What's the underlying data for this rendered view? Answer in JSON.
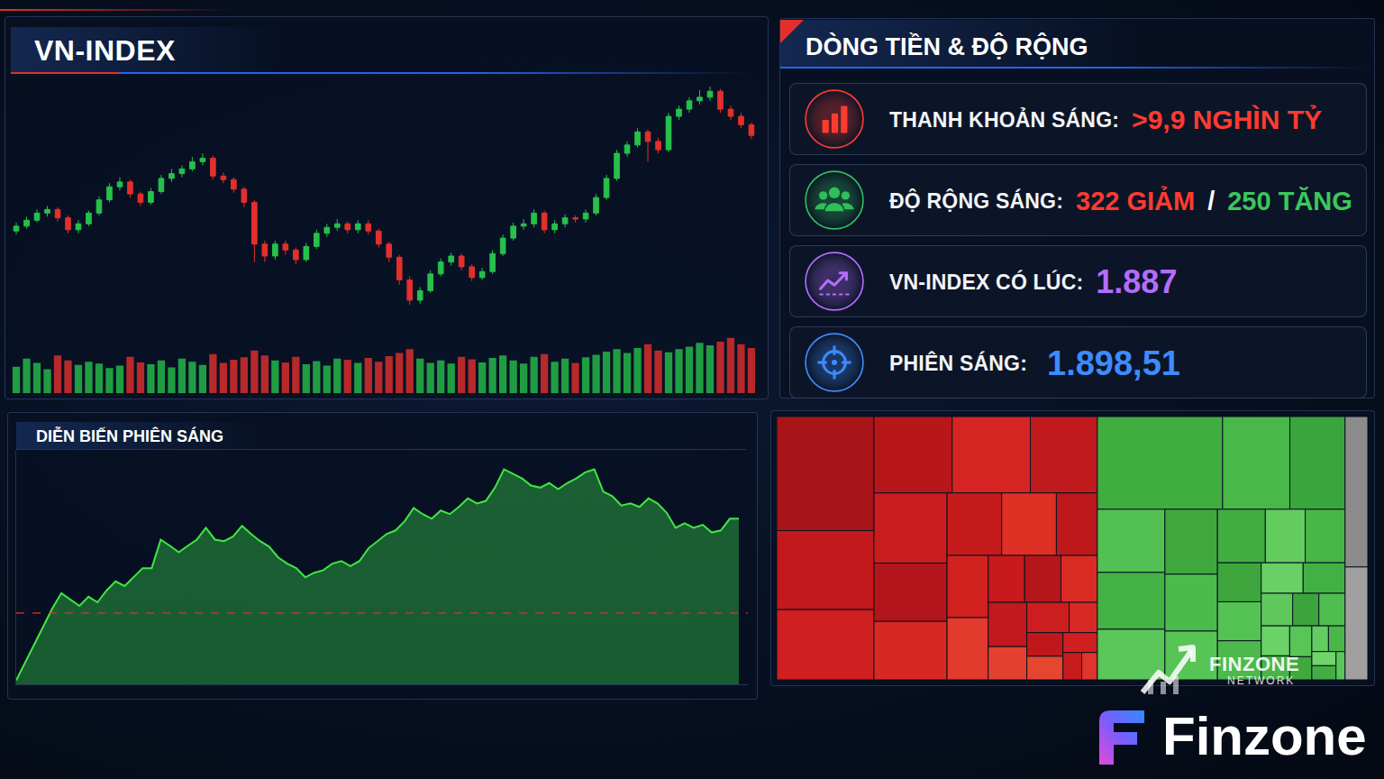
{
  "chart_data": [
    {
      "type": "candlestick",
      "title": "VN-INDEX",
      "open": [
        1778,
        1782,
        1787,
        1793,
        1796,
        1789,
        1779,
        1784,
        1793,
        1804,
        1815,
        1819,
        1809,
        1802,
        1811,
        1822,
        1826,
        1830,
        1836,
        1839,
        1824,
        1821,
        1813,
        1802,
        1767,
        1757,
        1767,
        1762,
        1754,
        1765,
        1776,
        1781,
        1784,
        1779,
        1784,
        1778,
        1767,
        1756,
        1737,
        1720,
        1728,
        1742,
        1752,
        1757,
        1748,
        1739,
        1744,
        1759,
        1772,
        1782,
        1784,
        1793,
        1779,
        1784,
        1789,
        1788,
        1793,
        1806,
        1822,
        1843,
        1850,
        1861,
        1853,
        1846,
        1874,
        1880,
        1887,
        1890,
        1895,
        1880,
        1874,
        1867
      ],
      "high": [
        1785,
        1790,
        1796,
        1799,
        1798,
        1791,
        1787,
        1795,
        1807,
        1818,
        1823,
        1821,
        1811,
        1814,
        1825,
        1830,
        1833,
        1840,
        1843,
        1841,
        1827,
        1823,
        1815,
        1804,
        1770,
        1770,
        1770,
        1764,
        1768,
        1779,
        1784,
        1788,
        1786,
        1787,
        1787,
        1780,
        1769,
        1758,
        1740,
        1731,
        1745,
        1755,
        1760,
        1759,
        1750,
        1747,
        1762,
        1775,
        1785,
        1788,
        1796,
        1795,
        1787,
        1792,
        1791,
        1796,
        1809,
        1825,
        1846,
        1853,
        1864,
        1863,
        1856,
        1877,
        1883,
        1890,
        1896,
        1899,
        1897,
        1883,
        1877,
        1869
      ],
      "low": [
        1775,
        1780,
        1785,
        1790,
        1786,
        1776,
        1776,
        1782,
        1791,
        1802,
        1812,
        1806,
        1799,
        1800,
        1809,
        1819,
        1823,
        1828,
        1833,
        1821,
        1818,
        1810,
        1798,
        1752,
        1752,
        1754,
        1758,
        1750,
        1752,
        1763,
        1773,
        1778,
        1776,
        1776,
        1775,
        1764,
        1752,
        1733,
        1716,
        1717,
        1726,
        1740,
        1749,
        1745,
        1736,
        1737,
        1742,
        1757,
        1770,
        1779,
        1781,
        1776,
        1776,
        1781,
        1785,
        1785,
        1791,
        1804,
        1820,
        1840,
        1848,
        1836,
        1843,
        1844,
        1871,
        1877,
        1884,
        1887,
        1877,
        1871,
        1864,
        1855
      ],
      "close": [
        1782,
        1787,
        1793,
        1796,
        1789,
        1779,
        1784,
        1793,
        1804,
        1815,
        1819,
        1809,
        1802,
        1811,
        1822,
        1826,
        1830,
        1836,
        1839,
        1824,
        1821,
        1813,
        1802,
        1767,
        1757,
        1767,
        1762,
        1754,
        1765,
        1776,
        1781,
        1784,
        1779,
        1784,
        1778,
        1767,
        1756,
        1737,
        1720,
        1728,
        1742,
        1752,
        1757,
        1748,
        1739,
        1744,
        1759,
        1772,
        1782,
        1784,
        1793,
        1779,
        1784,
        1789,
        1788,
        1793,
        1806,
        1822,
        1843,
        1850,
        1861,
        1853,
        1846,
        1874,
        1880,
        1887,
        1890,
        1895,
        1880,
        1874,
        1867,
        1858
      ],
      "colors": [
        "#27c04b",
        "#27c04b",
        "#27c04b",
        "#27c04b",
        "#e3302c",
        "#e3302c",
        "#27c04b",
        "#27c04b",
        "#27c04b",
        "#27c04b",
        "#27c04b",
        "#e3302c",
        "#e3302c",
        "#27c04b",
        "#27c04b",
        "#27c04b",
        "#27c04b",
        "#27c04b",
        "#27c04b",
        "#e3302c",
        "#e3302c",
        "#e3302c",
        "#e3302c",
        "#e3302c",
        "#e3302c",
        "#27c04b",
        "#e3302c",
        "#e3302c",
        "#27c04b",
        "#27c04b",
        "#27c04b",
        "#27c04b",
        "#e3302c",
        "#27c04b",
        "#e3302c",
        "#e3302c",
        "#e3302c",
        "#e3302c",
        "#e3302c",
        "#27c04b",
        "#27c04b",
        "#27c04b",
        "#27c04b",
        "#e3302c",
        "#e3302c",
        "#27c04b",
        "#27c04b",
        "#27c04b",
        "#27c04b",
        "#27c04b",
        "#27c04b",
        "#e3302c",
        "#27c04b",
        "#27c04b",
        "#e3302c",
        "#27c04b",
        "#27c04b",
        "#27c04b",
        "#27c04b",
        "#27c04b",
        "#27c04b",
        "#e3302c",
        "#e3302c",
        "#27c04b",
        "#27c04b",
        "#27c04b",
        "#27c04b",
        "#27c04b",
        "#e3302c",
        "#e3302c",
        "#e3302c",
        "#e3302c"
      ],
      "ylim": [
        1700,
        1905
      ],
      "tick_labels": false,
      "grid": false
    },
    {
      "type": "bar",
      "values": [
        42,
        55,
        48,
        38,
        60,
        52,
        45,
        50,
        47,
        40,
        44,
        58,
        49,
        46,
        52,
        41,
        55,
        50,
        45,
        62,
        48,
        53,
        57,
        68,
        60,
        52,
        49,
        58,
        46,
        51,
        44,
        55,
        53,
        48,
        56,
        50,
        59,
        64,
        70,
        55,
        48,
        52,
        47,
        58,
        54,
        49,
        56,
        60,
        52,
        47,
        58,
        62,
        50,
        55,
        48,
        57,
        61,
        66,
        70,
        64,
        72,
        78,
        68,
        65,
        70,
        74,
        80,
        76,
        82,
        88,
        78,
        72
      ],
      "colors": [
        "#27c04b",
        "#27c04b",
        "#27c04b",
        "#27c04b",
        "#e3302c",
        "#e3302c",
        "#27c04b",
        "#27c04b",
        "#27c04b",
        "#27c04b",
        "#27c04b",
        "#e3302c",
        "#e3302c",
        "#27c04b",
        "#27c04b",
        "#27c04b",
        "#27c04b",
        "#27c04b",
        "#27c04b",
        "#e3302c",
        "#e3302c",
        "#e3302c",
        "#e3302c",
        "#e3302c",
        "#e3302c",
        "#27c04b",
        "#e3302c",
        "#e3302c",
        "#27c04b",
        "#27c04b",
        "#27c04b",
        "#27c04b",
        "#e3302c",
        "#27c04b",
        "#e3302c",
        "#e3302c",
        "#e3302c",
        "#e3302c",
        "#e3302c",
        "#27c04b",
        "#27c04b",
        "#27c04b",
        "#27c04b",
        "#e3302c",
        "#e3302c",
        "#27c04b",
        "#27c04b",
        "#27c04b",
        "#27c04b",
        "#27c04b",
        "#27c04b",
        "#e3302c",
        "#27c04b",
        "#27c04b",
        "#e3302c",
        "#27c04b",
        "#27c04b",
        "#27c04b",
        "#27c04b",
        "#27c04b",
        "#27c04b",
        "#e3302c",
        "#e3302c",
        "#27c04b",
        "#27c04b",
        "#27c04b",
        "#27c04b",
        "#27c04b",
        "#e3302c",
        "#e3302c",
        "#e3302c",
        "#e3302c"
      ],
      "ylim": [
        0,
        100
      ],
      "tick_labels": false,
      "grid": false
    },
    {
      "type": "line",
      "title": "DIỄN BIẾN PHIÊN SÁNG",
      "values": [
        1866.8,
        1870.3,
        1873.8,
        1877.4,
        1880.9,
        1883.9,
        1882.6,
        1881.4,
        1883.2,
        1882.1,
        1884.4,
        1886.2,
        1885.3,
        1887.0,
        1888.8,
        1888.8,
        1894.4,
        1893.2,
        1891.9,
        1893.2,
        1894.4,
        1896.7,
        1894.4,
        1894.1,
        1895.0,
        1897.1,
        1895.5,
        1894.1,
        1893.0,
        1890.9,
        1889.7,
        1888.8,
        1887.0,
        1887.9,
        1888.4,
        1889.7,
        1890.2,
        1889.2,
        1890.2,
        1892.7,
        1894.1,
        1895.5,
        1896.2,
        1898.0,
        1900.6,
        1899.4,
        1898.5,
        1900.1,
        1899.4,
        1900.8,
        1902.5,
        1901.5,
        1902.0,
        1904.6,
        1908.2,
        1907.3,
        1906.4,
        1905.0,
        1904.6,
        1905.5,
        1904.3,
        1905.5,
        1906.4,
        1907.6,
        1908.2,
        1903.8,
        1902.9,
        1901.1,
        1901.5,
        1900.8,
        1902.5,
        1901.5,
        1899.7,
        1896.7,
        1897.6,
        1896.7,
        1897.3,
        1895.8,
        1896.2,
        1898.5,
        1898.5
      ],
      "color": "#3fe83f",
      "reference": {
        "value": 1880,
        "color": "#d9342b",
        "line_style": "dash"
      },
      "ylim": [
        1866,
        1912
      ],
      "tick_labels": false,
      "grid": false
    },
    {
      "type": "treemap",
      "groups": [
        {
          "values": [
            13,
            9,
            8,
            7,
            7,
            6,
            6,
            5,
            5,
            4,
            4,
            3,
            3,
            3,
            2,
            2,
            2,
            2,
            1.5,
            1.5,
            1,
            1,
            1,
            0.8,
            0.6,
            0.5
          ],
          "colors": [
            "#a81418",
            "#c3191c",
            "#cf1f20",
            "#b8171a",
            "#d52421",
            "#c01a1c",
            "#ca1d1e",
            "#b3161a",
            "#d82823",
            "#c51b1d",
            "#df3026",
            "#bd181b",
            "#d2221f",
            "#e23a2c",
            "#c8191d",
            "#b5161a",
            "#da2a24",
            "#c2191c",
            "#e4402f",
            "#cc1e1f",
            "#d92924",
            "#bf181b",
            "#e6452f",
            "#d01f20",
            "#c71b1d",
            "#e0352a"
          ]
        },
        {
          "values": [
            13.6,
            7.3,
            6,
            5,
            4.5,
            4,
            4,
            3.5,
            3,
            3,
            2.5,
            2.5,
            2,
            2,
            2,
            1.5,
            1.5,
            1.2,
            1,
            1,
            1,
            0.8,
            0.8,
            0.6,
            0.5,
            0.5,
            0.4,
            0.4,
            0.3
          ],
          "colors": [
            "#3fae3f",
            "#49b849",
            "#3aa53c",
            "#52c052",
            "#44b244",
            "#5bc65a",
            "#3ea83f",
            "#4dbb4c",
            "#57c456",
            "#41ad41",
            "#62cc5f",
            "#48b647",
            "#3da63d",
            "#55c254",
            "#4cba4b",
            "#68d064",
            "#43b043",
            "#5ec85c",
            "#3ba43c",
            "#50be4f",
            "#6ad266",
            "#46b446",
            "#59c557",
            "#3fa93f",
            "#64cd61",
            "#4ab849",
            "#6fd46a",
            "#42ae42",
            "#5ac658"
          ]
        },
        {
          "values": [
            4,
            3
          ],
          "colors": [
            "#8c8c8c",
            "#a0a0a0"
          ]
        }
      ],
      "tick_labels": false
    }
  ],
  "panel_title": "DÒNG TIỀN & ĐỘ RỘNG",
  "cards": [
    {
      "label": "THANH KHOẢN SÁNG:",
      "color": "#ff3b30",
      "parts": [
        {
          "text": ">9,9 NGHÌN TỶ",
          "color": "#ff3b30"
        }
      ]
    },
    {
      "label": "ĐỘ RỘNG SÁNG:",
      "color": "#2fbf5a",
      "parts": [
        {
          "text": "322 GIẢM",
          "color": "#ff3b30"
        },
        {
          "text": "/",
          "color": "#ffffff"
        },
        {
          "text": "250 TĂNG",
          "color": "#3cc85a"
        }
      ]
    },
    {
      "label": "VN-INDEX CÓ LÚC:",
      "color": "#b46cff",
      "parts": [
        {
          "text": "1.887",
          "color": "#b46cff"
        }
      ]
    },
    {
      "label": "PHIÊN SÁNG:",
      "color": "#3d8bff",
      "parts": [
        {
          "text": "1.898,51",
          "color": "#3d8bff"
        }
      ]
    }
  ],
  "branding": {
    "network": "FINZONE",
    "network_sub": "NETWORK",
    "brand": "Finzone"
  }
}
